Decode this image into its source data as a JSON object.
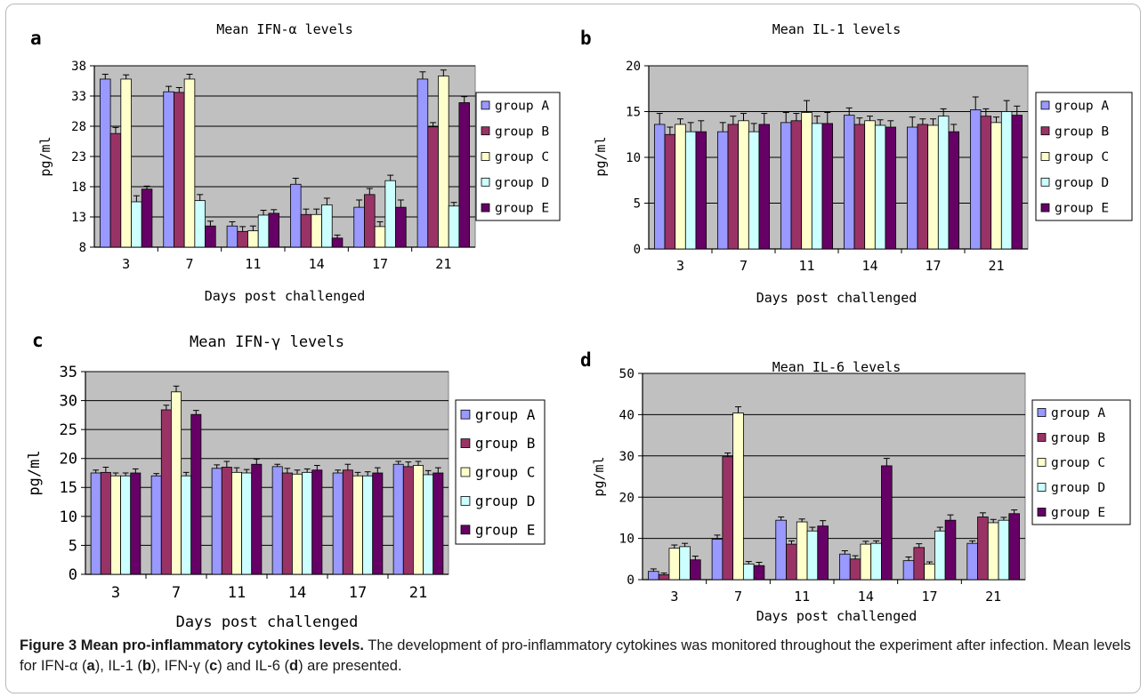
{
  "colors": {
    "plot_bg": "#c0c0c0",
    "group_A": "#9999ff",
    "group_B": "#993366",
    "group_C": "#ffffcc",
    "group_D": "#ccffff",
    "group_E": "#660066"
  },
  "chart_data": [
    {
      "panel_label": "a",
      "type": "bar",
      "title": "Mean IFN-α levels",
      "xlabel": "Days post challenged",
      "ylabel": "pg/ml",
      "ylim": [
        8,
        38
      ],
      "yticks": [
        8,
        13,
        18,
        23,
        28,
        33,
        38
      ],
      "grid": true,
      "legend_position": "right",
      "categories": [
        "3",
        "7",
        "11",
        "14",
        "17",
        "21"
      ],
      "series": [
        {
          "name": "group A",
          "values": [
            35.8,
            33.7,
            11.5,
            18.4,
            14.6,
            35.8
          ],
          "errors": [
            0.8,
            0.9,
            0.7,
            1.0,
            1.2,
            1.2
          ]
        },
        {
          "name": "group B",
          "values": [
            26.8,
            33.6,
            10.6,
            13.4,
            16.7,
            27.9
          ],
          "errors": [
            1.0,
            0.8,
            0.8,
            0.9,
            1.0,
            0.7
          ]
        },
        {
          "name": "group C",
          "values": [
            35.8,
            35.8,
            10.7,
            13.4,
            11.4,
            36.3
          ],
          "errors": [
            0.7,
            0.8,
            0.8,
            0.9,
            0.8,
            1.0
          ]
        },
        {
          "name": "group D",
          "values": [
            15.5,
            15.7,
            13.3,
            15.0,
            19.0,
            14.8
          ],
          "errors": [
            1.0,
            1.0,
            0.8,
            1.1,
            0.9,
            0.6
          ]
        },
        {
          "name": "group E",
          "values": [
            17.6,
            11.5,
            13.6,
            9.5,
            14.6,
            31.9
          ],
          "errors": [
            0.5,
            0.8,
            0.6,
            0.5,
            1.2,
            1.0
          ]
        }
      ]
    },
    {
      "panel_label": "b",
      "type": "bar",
      "title": "Mean IL-1 levels",
      "xlabel": "Days post challenged",
      "ylabel": "pg/ml",
      "ylim": [
        0,
        20
      ],
      "yticks": [
        0,
        5,
        10,
        15,
        20
      ],
      "grid": true,
      "legend_position": "right",
      "categories": [
        "3",
        "7",
        "11",
        "14",
        "17",
        "21"
      ],
      "series": [
        {
          "name": "group A",
          "values": [
            13.6,
            12.8,
            13.8,
            14.6,
            13.3,
            15.2
          ],
          "errors": [
            1.2,
            1.0,
            1.1,
            0.8,
            1.1,
            1.4
          ]
        },
        {
          "name": "group B",
          "values": [
            12.5,
            13.6,
            14.0,
            13.6,
            13.6,
            14.5
          ],
          "errors": [
            0.8,
            0.9,
            0.8,
            0.7,
            0.6,
            0.8
          ]
        },
        {
          "name": "group C",
          "values": [
            13.6,
            14.0,
            14.9,
            14.0,
            13.5,
            13.8
          ],
          "errors": [
            0.6,
            0.8,
            1.3,
            0.5,
            0.7,
            0.6
          ]
        },
        {
          "name": "group D",
          "values": [
            12.8,
            12.8,
            13.7,
            13.5,
            14.5,
            15.0
          ],
          "errors": [
            1.0,
            0.9,
            0.8,
            0.6,
            0.8,
            1.2
          ]
        },
        {
          "name": "group E",
          "values": [
            12.8,
            13.6,
            13.7,
            13.3,
            12.8,
            14.6
          ],
          "errors": [
            1.2,
            1.2,
            1.2,
            0.7,
            0.8,
            1.0
          ]
        }
      ]
    },
    {
      "panel_label": "c",
      "type": "bar",
      "title": "Mean IFN-γ levels",
      "xlabel": "Days post challenged",
      "ylabel": "pg/ml",
      "ylim": [
        0,
        35
      ],
      "yticks": [
        0,
        5,
        10,
        15,
        20,
        25,
        30,
        35
      ],
      "grid": true,
      "legend_position": "right",
      "categories": [
        "3",
        "7",
        "11",
        "14",
        "17",
        "21"
      ],
      "series": [
        {
          "name": "group A",
          "values": [
            17.5,
            17.0,
            18.3,
            18.6,
            17.5,
            19.0
          ],
          "errors": [
            0.5,
            0.4,
            0.6,
            0.4,
            0.5,
            0.5
          ]
        },
        {
          "name": "group B",
          "values": [
            17.6,
            28.4,
            18.5,
            17.5,
            18.0,
            18.6
          ],
          "errors": [
            0.9,
            0.8,
            1.0,
            0.8,
            1.0,
            0.8
          ]
        },
        {
          "name": "group C",
          "values": [
            17.0,
            31.5,
            17.6,
            17.3,
            17.0,
            18.8
          ],
          "errors": [
            0.5,
            1.0,
            0.8,
            0.7,
            0.6,
            0.7
          ]
        },
        {
          "name": "group D",
          "values": [
            17.0,
            17.0,
            17.5,
            17.6,
            17.0,
            17.2
          ],
          "errors": [
            0.5,
            0.6,
            0.6,
            0.6,
            0.7,
            0.7
          ]
        },
        {
          "name": "group E",
          "values": [
            17.5,
            27.6,
            19.0,
            18.0,
            17.5,
            17.5
          ],
          "errors": [
            0.7,
            0.7,
            0.9,
            0.8,
            0.9,
            0.9
          ]
        }
      ]
    },
    {
      "panel_label": "d",
      "type": "bar",
      "title": "Mean IL-6 levels",
      "xlabel": "Days post challenged",
      "ylabel": "pg/ml",
      "ylim": [
        0,
        50
      ],
      "yticks": [
        0,
        10,
        20,
        30,
        40,
        50
      ],
      "grid": true,
      "legend_position": "right",
      "categories": [
        "3",
        "7",
        "11",
        "14",
        "17",
        "21"
      ],
      "series": [
        {
          "name": "group A",
          "values": [
            2.0,
            9.8,
            14.4,
            6.2,
            4.6,
            8.8
          ],
          "errors": [
            0.6,
            1.0,
            0.8,
            0.8,
            0.9,
            0.6
          ]
        },
        {
          "name": "group B",
          "values": [
            1.2,
            29.8,
            8.6,
            5.0,
            7.8,
            15.2
          ],
          "errors": [
            0.4,
            0.9,
            0.8,
            0.8,
            0.9,
            1.0
          ]
        },
        {
          "name": "group C",
          "values": [
            7.6,
            40.4,
            14.0,
            8.6,
            3.8,
            13.8
          ],
          "errors": [
            0.8,
            1.5,
            0.7,
            0.7,
            0.5,
            0.8
          ]
        },
        {
          "name": "group D",
          "values": [
            8.0,
            3.8,
            11.8,
            8.8,
            11.8,
            14.4
          ],
          "errors": [
            0.8,
            0.6,
            0.9,
            0.6,
            0.9,
            0.7
          ]
        },
        {
          "name": "group E",
          "values": [
            4.8,
            3.4,
            13.0,
            27.6,
            14.4,
            16.0
          ],
          "errors": [
            0.9,
            0.8,
            1.3,
            1.8,
            1.3,
            0.9
          ]
        }
      ]
    }
  ],
  "caption": {
    "title": "Figure 3 Mean pro-inflammatory cytokines levels.",
    "text_1": " The development of pro-inflammatory cytokines was monitored throughout the experiment after infection. Mean levels for IFN-α (",
    "l_a": "a",
    "text_2": "), IL-1 (",
    "l_b": "b",
    "text_3": "), IFN-γ (",
    "l_c": "c",
    "text_4": ") and IL-6 (",
    "l_d": "d",
    "text_5": ") are presented."
  }
}
